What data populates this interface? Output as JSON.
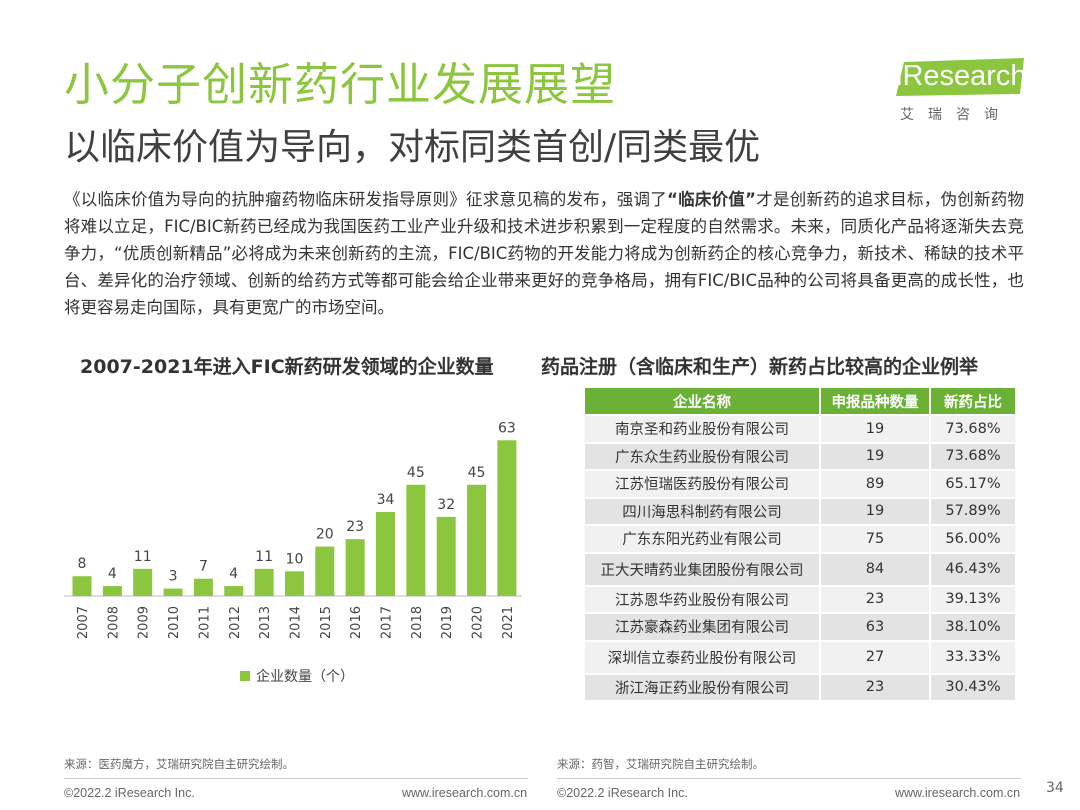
{
  "header": {
    "title": "小分子创新药行业发展展望",
    "subtitle": "以临床价值为导向，对标同类首创/同类最优",
    "logo_text": "iResearch",
    "logo_subtitle": "艾瑞咨询",
    "brand_color": "#8cc63f"
  },
  "body": {
    "part1": "《以临床价值为导向的抗肿瘤药物临床研发指导原则》征求意见稿的发布，强调了",
    "emphasis": "“临床价值”",
    "part2": "才是创新药的追求目标，伪创新药物将难以立足，FIC/BIC新药已经成为我国医药工业产业升级和技术进步积累到一定程度的自然需求。未来，同质化产品将逐渐失去竞争力，“优质创新精品”必将成为未来创新药的主流，FIC/BIC药物的开发能力将成为创新药企的核心竞争力，新技术、稀缺的技术平台、差异化的治疗领域、创新的给药方式等都可能会给企业带来更好的竞争格局，拥有FIC/BIC品种的公司将具备更高的成长性，也将更容易走向国际，具有更宽广的市场空间。"
  },
  "chart_data": {
    "type": "bar",
    "title": "2007-2021年进入FIC新药研发领域的企业数量",
    "categories": [
      "2007",
      "2008",
      "2009",
      "2010",
      "2011",
      "2012",
      "2013",
      "2014",
      "2015",
      "2016",
      "2017",
      "2018",
      "2019",
      "2020",
      "2021"
    ],
    "values": [
      8,
      4,
      11,
      3,
      7,
      4,
      11,
      10,
      20,
      23,
      34,
      45,
      32,
      45,
      63
    ],
    "series_name": "企业数量（个）",
    "color": "#8cc63f",
    "ylim": [
      0,
      70
    ],
    "xlabel": "",
    "ylabel": ""
  },
  "table": {
    "title": "药品注册（含临床和生产）新药占比较高的企业例举",
    "headers": [
      "企业名称",
      "申报品种数量",
      "新药占比"
    ],
    "rows": [
      [
        "南京圣和药业股份有限公司",
        "19",
        "73.68%"
      ],
      [
        "广东众生药业股份有限公司",
        "19",
        "73.68%"
      ],
      [
        "江苏恒瑞医药股份有限公司",
        "89",
        "65.17%"
      ],
      [
        "四川海思科制药有限公司",
        "19",
        "57.89%"
      ],
      [
        "广东东阳光药业有限公司",
        "75",
        "56.00%"
      ],
      [
        "正大天晴药业集团股份有限公司",
        "84",
        "46.43%"
      ],
      [
        "江苏恩华药业股份有限公司",
        "23",
        "39.13%"
      ],
      [
        "江苏豪森药业集团有限公司",
        "63",
        "38.10%"
      ],
      [
        "深圳信立泰药业股份有限公司",
        "27",
        "33.33%"
      ],
      [
        "浙江海正药业股份有限公司",
        "23",
        "30.43%"
      ]
    ],
    "header_color": "#6ab135"
  },
  "sources": {
    "left": "来源：医药魔方，艾瑞研究院自主研究绘制。",
    "right": "来源：药智，艾瑞研究院自主研究绘制。"
  },
  "footer": {
    "copyright_left": "©2022.2 iResearch Inc.",
    "url_left": "www.iresearch.com.cn",
    "copyright_right": "©2022.2 iResearch Inc.",
    "url_right": "www.iresearch.com.cn",
    "page_number": "34"
  }
}
